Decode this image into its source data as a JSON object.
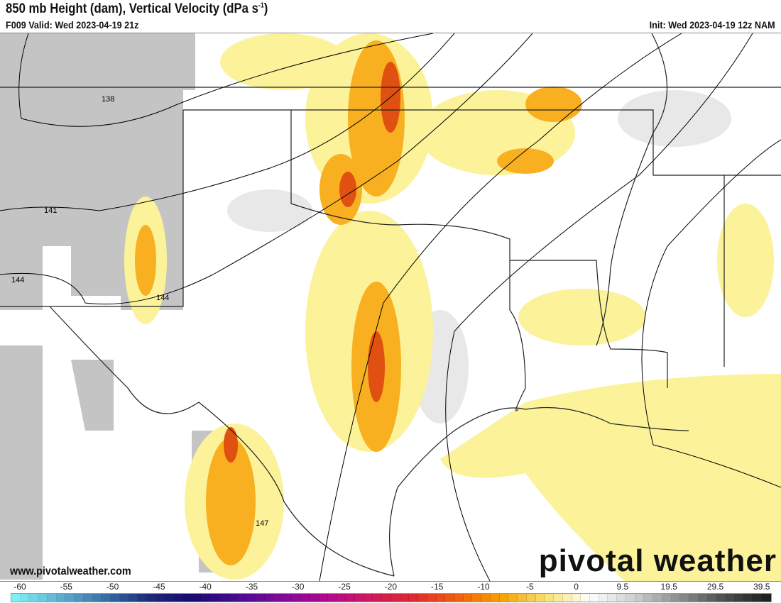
{
  "header": {
    "title": "850 mb Height (dam), Vertical Velocity (dPa s",
    "title_sup": "-1",
    "title_end": ")",
    "valid": "F009 Valid: Wed 2023-04-19 21z",
    "init": "Init: Wed 2023-04-19 12z NAM"
  },
  "contour_labels": [
    "138",
    "141",
    "144",
    "144",
    "147"
  ],
  "watermark": {
    "url": "www.pivotalweather.com",
    "logo": "pivotal weather"
  },
  "colorbar": {
    "ticks": [
      "-60",
      "-55",
      "-50",
      "-45",
      "-40",
      "-35",
      "-30",
      "-25",
      "-20",
      "-15",
      "-10",
      "-5",
      "0",
      "9.5",
      "19.5",
      "29.5",
      "39.5"
    ],
    "stops": [
      "#80f0f8",
      "#60b0d0",
      "#3a70a8",
      "#1e2a78",
      "#1a0a70",
      "#4a0a90",
      "#800a98",
      "#b00890",
      "#d01860",
      "#e02830",
      "#f06010",
      "#f8a000",
      "#f8e070",
      "#ffffff",
      "#d0d0d0",
      "#909090",
      "#505050",
      "#202020"
    ]
  }
}
